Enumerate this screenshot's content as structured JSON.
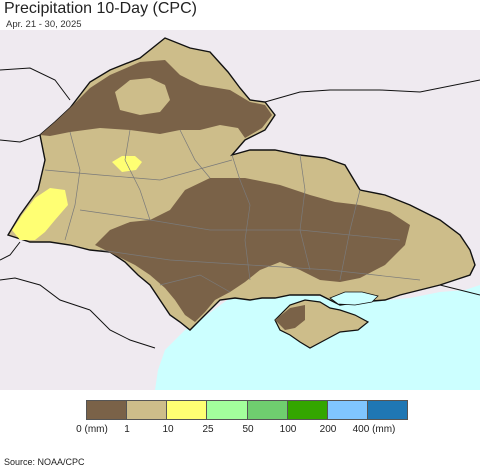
{
  "header": {
    "title": "Precipitation 10-Day (CPC)",
    "subtitle": "Apr. 21 - 30, 2025"
  },
  "legend": {
    "colors": [
      "#7a6248",
      "#cdbd8a",
      "#ffff73",
      "#a3ff9c",
      "#6fce6f",
      "#33a600",
      "#80c6ff",
      "#1f77b4"
    ],
    "labels": [
      "0 (mm)",
      "1",
      "10",
      "25",
      "50",
      "100",
      "200",
      "400 (mm)"
    ]
  },
  "map_colors": {
    "background": "#efeaf0",
    "sea": "#ccffff",
    "brown": "#7a6248",
    "tan": "#cdbd8a",
    "yellow": "#ffff73",
    "border": "#111111",
    "oblast_border": "#7a7a7a"
  },
  "footer": {
    "source": "Source: NOAA/CPC"
  }
}
